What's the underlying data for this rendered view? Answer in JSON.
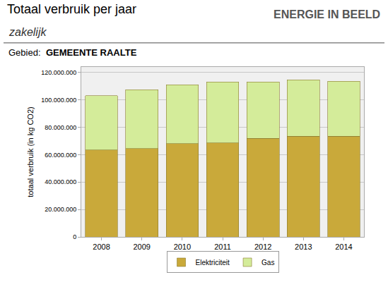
{
  "chart_data": {
    "type": "bar",
    "title": "Totaal verbruik per jaar",
    "subtitle": "zakelijk",
    "annotations": [
      "ENERGIE IN BEELD",
      "Gebied:",
      "GEMEENTE RAALTE"
    ],
    "y_label": "totaal verbruik (in kg CO2)",
    "categories": [
      "2008",
      "2009",
      "2010",
      "2011",
      "2012",
      "2013",
      "2014"
    ],
    "series": [
      {
        "name": "Elektriciteit",
        "color": "#c9a93a",
        "values": [
          63500000,
          64500000,
          68000000,
          68500000,
          72000000,
          73500000,
          73500000
        ]
      },
      {
        "name": "Gas",
        "color": "#d4ec9a",
        "values": [
          39500000,
          43000000,
          43000000,
          44500000,
          41000000,
          41000000,
          40000000
        ]
      }
    ],
    "stacked": true,
    "ylim": [
      0,
      124000000
    ],
    "yticks": [
      0,
      {
        "value": 20000000,
        "label": "20.000.000"
      },
      {
        "value": 40000000,
        "label": "40.000.000"
      },
      {
        "value": 60000000,
        "label": "60.000.000"
      },
      {
        "value": 80000000,
        "label": "80.000.000"
      },
      {
        "value": 100000000,
        "label": "100.000.000"
      },
      {
        "value": 120000000,
        "label": "120.000.000"
      }
    ],
    "grid": true,
    "legend": "bottom"
  }
}
